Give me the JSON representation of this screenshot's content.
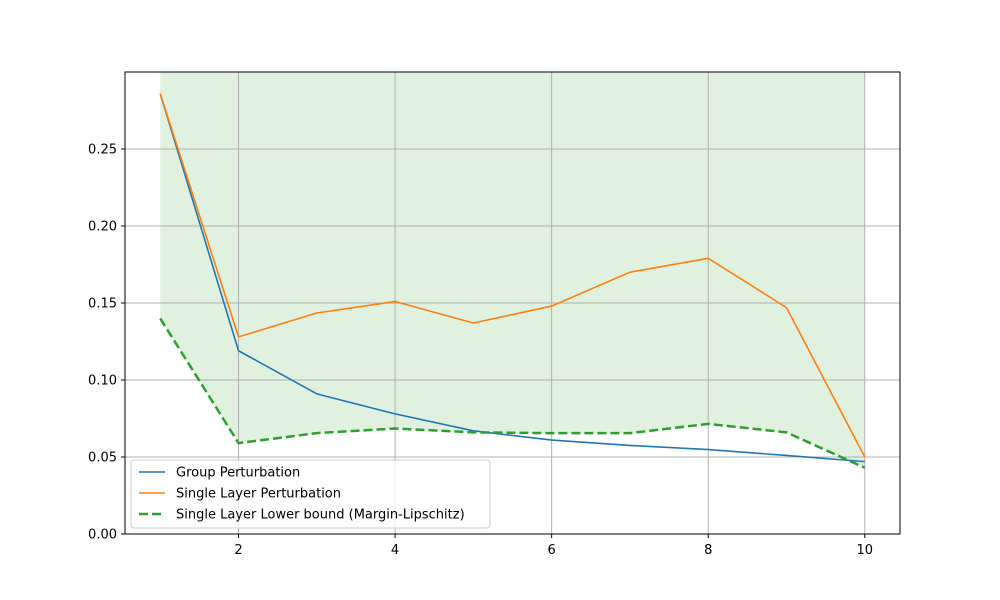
{
  "chart_data": {
    "type": "line",
    "title": "",
    "xlabel": "",
    "ylabel": "",
    "xlim": [
      0.55,
      10.45
    ],
    "ylim": [
      0.0,
      0.3
    ],
    "x_ticks": [
      2,
      4,
      6,
      8,
      10
    ],
    "y_ticks": [
      0.0,
      0.05,
      0.1,
      0.15,
      0.2,
      0.25
    ],
    "x_tick_labels": [
      "2",
      "4",
      "6",
      "8",
      "10"
    ],
    "y_tick_labels": [
      "0.00",
      "0.05",
      "0.10",
      "0.15",
      "0.20",
      "0.25"
    ],
    "grid": true,
    "legend_position": "lower-left",
    "x": [
      1,
      2,
      3,
      4,
      5,
      6,
      7,
      8,
      9,
      10
    ],
    "series": [
      {
        "name": "Group Perturbation",
        "color": "#1f77b4",
        "style": "solid",
        "values": [
          0.286,
          0.119,
          0.091,
          0.078,
          0.067,
          0.061,
          0.0575,
          0.0548,
          0.051,
          0.047
        ]
      },
      {
        "name": "Single Layer Perturbation",
        "color": "#ff7f0e",
        "style": "solid",
        "values": [
          0.286,
          0.128,
          0.1435,
          0.151,
          0.137,
          0.148,
          0.17,
          0.179,
          0.147,
          0.05
        ]
      },
      {
        "name": "Single Layer Lower bound (Margin-Lipschitz)",
        "color": "#2ca02c",
        "style": "dashed",
        "values": [
          0.14,
          0.059,
          0.0655,
          0.0685,
          0.066,
          0.0655,
          0.0655,
          0.0715,
          0.066,
          0.043
        ]
      }
    ],
    "fill_band": {
      "description_series": "Single Layer Lower bound (Margin-Lipschitz)",
      "upper": 0.3,
      "color": "#2ca02c"
    }
  }
}
